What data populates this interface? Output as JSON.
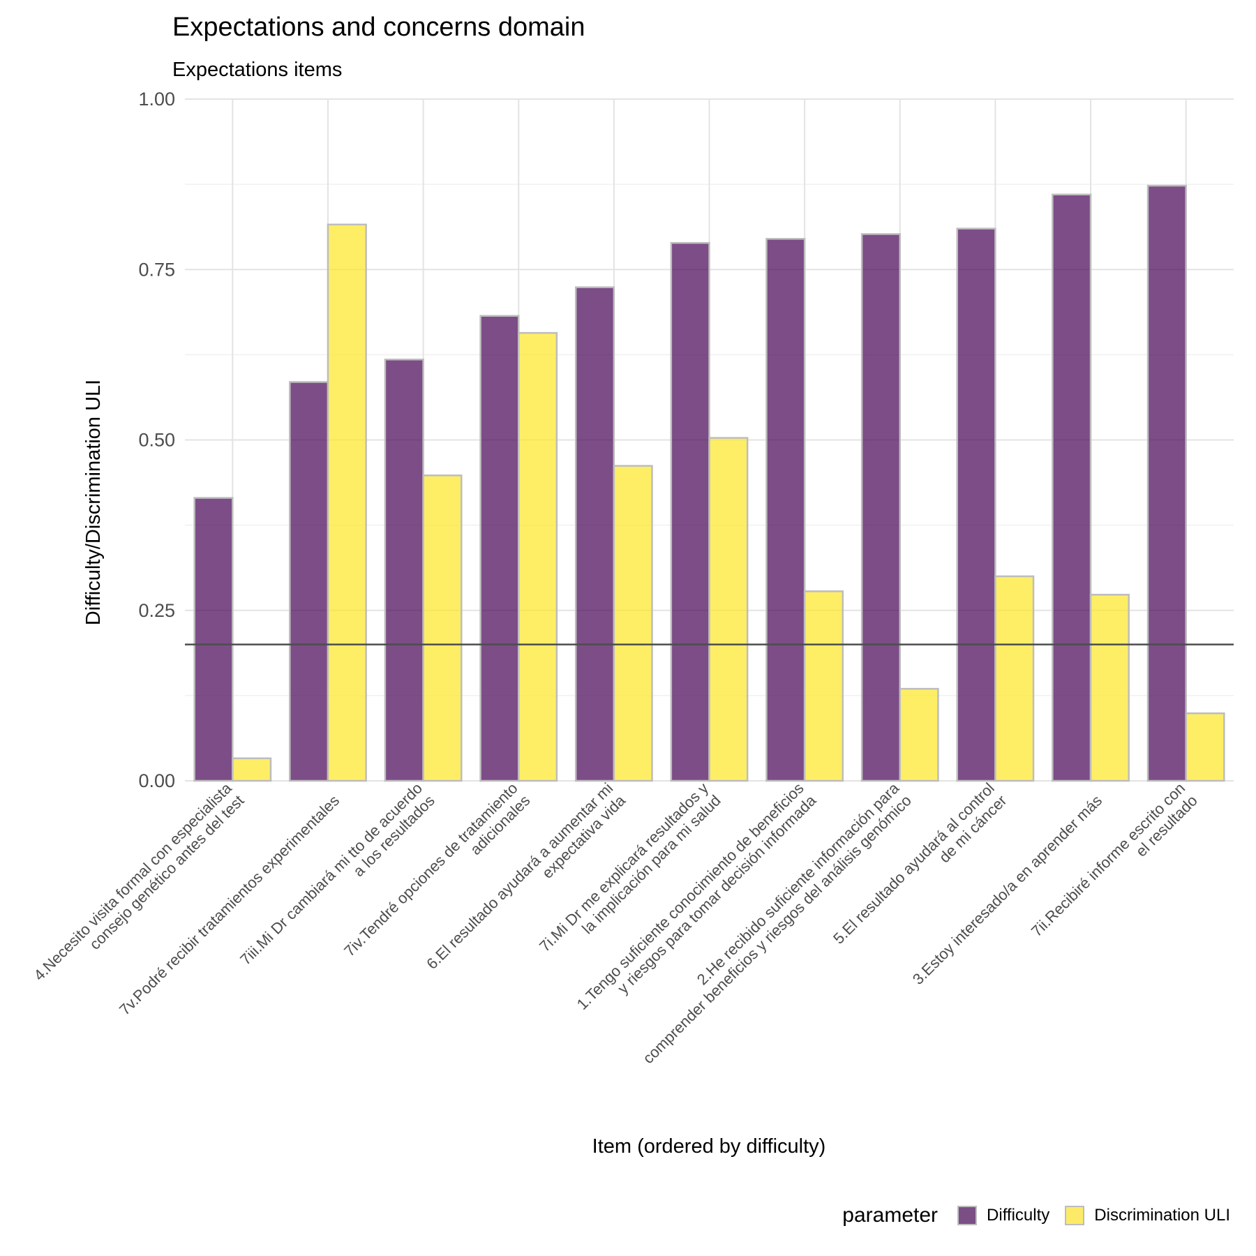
{
  "chart_data": {
    "type": "bar",
    "title": "Expectations and concerns domain",
    "subtitle": "Expectations items",
    "xlabel": "Item (ordered by difficulty)",
    "ylabel": "Difficulty/Discrimination ULI",
    "ylim": [
      0,
      1
    ],
    "yticks": [
      "0.00",
      "0.25",
      "0.50",
      "0.75",
      "1.00"
    ],
    "reference_line": 0.2,
    "grid": true,
    "legend_position": "bottom-right",
    "legend_title": "parameter",
    "categories": [
      [
        "4.Necesito visita formal con especialista",
        "consejo genético antes del test"
      ],
      [
        "7v.Podré recibir tratamientos experimentales"
      ],
      [
        "7iii.Mi Dr cambiará mi tto de acuerdo",
        "a los resultados"
      ],
      [
        "7iv.Tendré opciones de tratamiento",
        "adicionales"
      ],
      [
        "6.El resultado ayudará a aumentar mi",
        "expectativa vida"
      ],
      [
        "7i.Mi Dr me explicará resultados y",
        "la implicación para mi salud"
      ],
      [
        "1.Tengo suficiente conocimiento de beneficios",
        "y riesgos para tomar decisión informada"
      ],
      [
        "2.He recibido suficiente información para",
        "comprender beneficios y riesgos del análisis genómico"
      ],
      [
        "5.El resultado ayudará al control",
        "de mi cáncer"
      ],
      [
        "3.Estoy interesado/a en aprender más"
      ],
      [
        "7ii.Recibiré informe escrito con",
        "el resultado"
      ]
    ],
    "series": [
      {
        "name": "Difficulty",
        "color": "#440154",
        "values": [
          0.415,
          0.585,
          0.618,
          0.682,
          0.724,
          0.789,
          0.795,
          0.802,
          0.81,
          0.86,
          0.873
        ]
      },
      {
        "name": "Discrimination ULI",
        "color": "#fde725",
        "values": [
          0.033,
          0.816,
          0.448,
          0.657,
          0.462,
          0.503,
          0.278,
          0.135,
          0.3,
          0.273,
          0.099
        ]
      }
    ]
  }
}
